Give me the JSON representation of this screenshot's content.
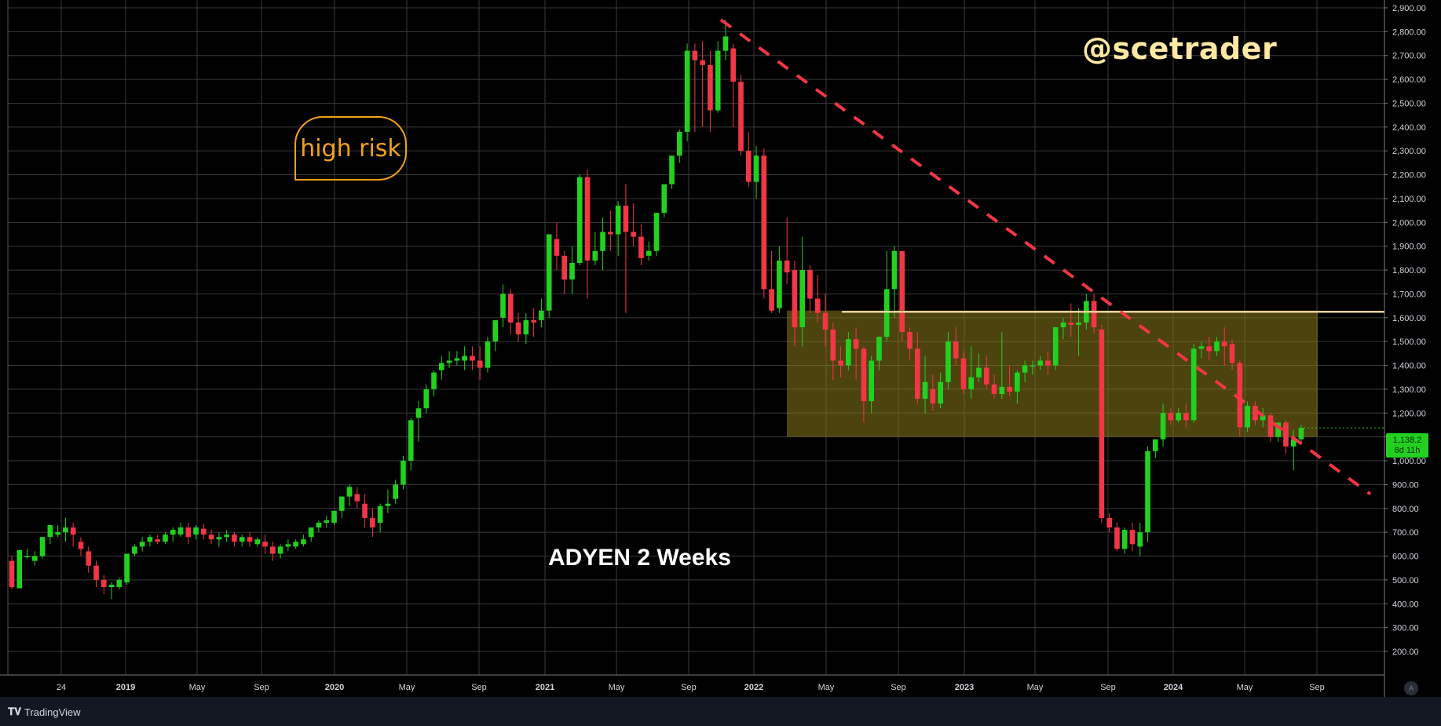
{
  "watermark": "@scetrader",
  "title_label": "ADYEN 2 Weeks",
  "callout": "high risk",
  "price_tag": {
    "price": "1,138.2",
    "countdown": "8d 11h"
  },
  "brand": "TradingView",
  "auto_button": "A",
  "colors": {
    "background": "#000000",
    "up": "#22d11f",
    "down": "#f23645",
    "grid": "#3a3a3a",
    "range_box": "#8a7a1c",
    "resistance_line": "#e8d29a",
    "trendline": "#f23645",
    "callout": "#f2a01a",
    "watermark": "#ffe8a3"
  },
  "chart_data": {
    "type": "candlestick",
    "title": "ADYEN 2 Weeks",
    "ylim": [
      200,
      2900
    ],
    "yticks": [
      200,
      300,
      400,
      500,
      600,
      700,
      800,
      900,
      1000,
      1100,
      1200,
      1300,
      1400,
      1500,
      1600,
      1700,
      1800,
      1900,
      2000,
      2100,
      2200,
      2300,
      2400,
      2500,
      2600,
      2700,
      2800,
      2900
    ],
    "ytick_labels": [
      "200.00",
      "300.00",
      "400.00",
      "500.00",
      "600.00",
      "700.00",
      "800.00",
      "900.00",
      "1,000.00",
      "1,100.00",
      "1,200.00",
      "1,300.00",
      "1,400.00",
      "1,500.00",
      "1,600.00",
      "1,700.00",
      "1,800.00",
      "1,900.00",
      "2,000.00",
      "2,100.00",
      "2,200.00",
      "2,300.00",
      "2,400.00",
      "2,500.00",
      "2,600.00",
      "2,700.00",
      "2,800.00",
      "2,900.00"
    ],
    "xticks": [
      {
        "label": "24",
        "bold": false
      },
      {
        "label": "2019",
        "bold": true
      },
      {
        "label": "May",
        "bold": false
      },
      {
        "label": "Sep",
        "bold": false
      },
      {
        "label": "2020",
        "bold": true
      },
      {
        "label": "May",
        "bold": false
      },
      {
        "label": "Sep",
        "bold": false
      },
      {
        "label": "2021",
        "bold": true
      },
      {
        "label": "May",
        "bold": false
      },
      {
        "label": "Sep",
        "bold": false
      },
      {
        "label": "2022",
        "bold": true
      },
      {
        "label": "May",
        "bold": false
      },
      {
        "label": "Sep",
        "bold": false
      },
      {
        "label": "2023",
        "bold": true
      },
      {
        "label": "May",
        "bold": false
      },
      {
        "label": "Sep",
        "bold": false
      },
      {
        "label": "2024",
        "bold": true
      },
      {
        "label": "May",
        "bold": false
      },
      {
        "label": "Sep",
        "bold": false
      }
    ],
    "range_box": {
      "low": 1100,
      "high": 1630
    },
    "resistance": 1625,
    "trendline": [
      {
        "start": 2850
      },
      {
        "end": 860
      }
    ],
    "last_price": 1138.2,
    "candles": [
      [
        580,
        600,
        470,
        460
      ],
      [
        465,
        600,
        625,
        470
      ],
      [
        600,
        630,
        600,
        590
      ],
      [
        580,
        620,
        600,
        560
      ],
      [
        600,
        640,
        680,
        590
      ],
      [
        680,
        720,
        730,
        650
      ],
      [
        690,
        730,
        700,
        680
      ],
      [
        700,
        760,
        720,
        660
      ],
      [
        720,
        740,
        690,
        640
      ],
      [
        660,
        680,
        630,
        600
      ],
      [
        620,
        640,
        560,
        530
      ],
      [
        560,
        580,
        500,
        470
      ],
      [
        500,
        520,
        470,
        440
      ],
      [
        470,
        490,
        480,
        420
      ],
      [
        470,
        510,
        500,
        460
      ],
      [
        490,
        520,
        610,
        480
      ],
      [
        610,
        650,
        640,
        600
      ],
      [
        640,
        680,
        660,
        620
      ],
      [
        660,
        690,
        680,
        640
      ],
      [
        670,
        690,
        660,
        650
      ],
      [
        660,
        700,
        690,
        650
      ],
      [
        690,
        720,
        710,
        660
      ],
      [
        690,
        740,
        720,
        680
      ],
      [
        720,
        740,
        680,
        650
      ],
      [
        690,
        730,
        720,
        670
      ],
      [
        715,
        735,
        690,
        670
      ],
      [
        690,
        710,
        670,
        650
      ],
      [
        670,
        700,
        680,
        640
      ],
      [
        680,
        710,
        690,
        660
      ],
      [
        690,
        700,
        660,
        640
      ],
      [
        660,
        690,
        680,
        640
      ],
      [
        680,
        700,
        660,
        640
      ],
      [
        650,
        680,
        670,
        640
      ],
      [
        660,
        690,
        640,
        610
      ],
      [
        640,
        660,
        610,
        580
      ],
      [
        610,
        650,
        640,
        590
      ],
      [
        640,
        670,
        650,
        620
      ],
      [
        640,
        670,
        660,
        630
      ],
      [
        650,
        690,
        670,
        640
      ],
      [
        680,
        720,
        720,
        660
      ],
      [
        720,
        750,
        740,
        700
      ],
      [
        740,
        770,
        750,
        720
      ],
      [
        740,
        790,
        790,
        730
      ],
      [
        790,
        850,
        850,
        760
      ],
      [
        850,
        900,
        890,
        810
      ],
      [
        860,
        890,
        830,
        800
      ],
      [
        820,
        860,
        760,
        720
      ],
      [
        760,
        800,
        720,
        680
      ],
      [
        740,
        820,
        810,
        700
      ],
      [
        810,
        880,
        820,
        780
      ],
      [
        840,
        920,
        900,
        820
      ],
      [
        900,
        1020,
        1000,
        880
      ],
      [
        1000,
        1180,
        1170,
        960
      ],
      [
        1180,
        1250,
        1220,
        1080
      ],
      [
        1220,
        1320,
        1300,
        1200
      ],
      [
        1300,
        1380,
        1370,
        1270
      ],
      [
        1380,
        1440,
        1410,
        1340
      ],
      [
        1410,
        1460,
        1420,
        1390
      ],
      [
        1420,
        1460,
        1430,
        1400
      ],
      [
        1420,
        1480,
        1440,
        1380
      ],
      [
        1440,
        1480,
        1420,
        1380
      ],
      [
        1420,
        1480,
        1390,
        1340
      ],
      [
        1390,
        1520,
        1500,
        1370
      ],
      [
        1500,
        1580,
        1590,
        1460
      ],
      [
        1600,
        1740,
        1700,
        1560
      ],
      [
        1700,
        1720,
        1580,
        1530
      ],
      [
        1580,
        1620,
        1530,
        1500
      ],
      [
        1530,
        1620,
        1590,
        1490
      ],
      [
        1590,
        1640,
        1580,
        1520
      ],
      [
        1590,
        1680,
        1630,
        1560
      ],
      [
        1630,
        1750,
        1950,
        1600
      ],
      [
        1930,
        2000,
        1860,
        1800
      ],
      [
        1860,
        1880,
        1760,
        1700
      ],
      [
        1760,
        1900,
        1830,
        1700
      ],
      [
        1830,
        2200,
        2190,
        1820
      ],
      [
        2190,
        2220,
        1840,
        1680
      ],
      [
        1840,
        1960,
        1880,
        1820
      ],
      [
        1880,
        2020,
        1960,
        1800
      ],
      [
        1960,
        2050,
        1950,
        1880
      ],
      [
        1950,
        2090,
        2070,
        1860
      ],
      [
        2070,
        2160,
        1960,
        1620
      ],
      [
        1960,
        2080,
        1940,
        1900
      ],
      [
        1940,
        1990,
        1850,
        1820
      ],
      [
        1860,
        1920,
        1880,
        1840
      ],
      [
        1880,
        1960,
        2040,
        1860
      ],
      [
        2040,
        2100,
        2160,
        2020
      ],
      [
        2160,
        2230,
        2280,
        2140
      ],
      [
        2280,
        2390,
        2380,
        2250
      ],
      [
        2380,
        2750,
        2720,
        2340
      ],
      [
        2720,
        2750,
        2680,
        2380
      ],
      [
        2680,
        2760,
        2660,
        2400
      ],
      [
        2660,
        2720,
        2470,
        2380
      ],
      [
        2470,
        2760,
        2720,
        2460
      ],
      [
        2720,
        2850,
        2780,
        2680
      ],
      [
        2730,
        2750,
        2590,
        2400
      ],
      [
        2590,
        2620,
        2300,
        2280
      ],
      [
        2300,
        2380,
        2170,
        2150
      ],
      [
        2170,
        2320,
        2280,
        2100
      ],
      [
        2280,
        2310,
        1720,
        1680
      ],
      [
        1720,
        1880,
        1630,
        1620
      ],
      [
        1640,
        1900,
        1840,
        1620
      ],
      [
        1840,
        2020,
        1790,
        1740
      ],
      [
        1800,
        1840,
        1560,
        1480
      ],
      [
        1560,
        1940,
        1800,
        1480
      ],
      [
        1800,
        1820,
        1680,
        1620
      ],
      [
        1680,
        1780,
        1620,
        1580
      ],
      [
        1620,
        1700,
        1550,
        1480
      ],
      [
        1550,
        1580,
        1420,
        1340
      ],
      [
        1420,
        1480,
        1400,
        1350
      ],
      [
        1400,
        1540,
        1510,
        1380
      ],
      [
        1510,
        1560,
        1470,
        1340
      ],
      [
        1470,
        1480,
        1250,
        1160
      ],
      [
        1250,
        1440,
        1420,
        1200
      ],
      [
        1420,
        1500,
        1520,
        1380
      ],
      [
        1520,
        1880,
        1720,
        1500
      ],
      [
        1720,
        1900,
        1880,
        1600
      ],
      [
        1880,
        1860,
        1540,
        1500
      ],
      [
        1540,
        1560,
        1470,
        1420
      ],
      [
        1470,
        1540,
        1260,
        1240
      ],
      [
        1260,
        1440,
        1330,
        1200
      ],
      [
        1300,
        1360,
        1240,
        1210
      ],
      [
        1240,
        1370,
        1330,
        1220
      ],
      [
        1330,
        1540,
        1500,
        1300
      ],
      [
        1500,
        1560,
        1430,
        1400
      ],
      [
        1430,
        1460,
        1300,
        1280
      ],
      [
        1300,
        1480,
        1350,
        1260
      ],
      [
        1350,
        1450,
        1390,
        1330
      ],
      [
        1390,
        1440,
        1320,
        1300
      ],
      [
        1320,
        1360,
        1280,
        1260
      ],
      [
        1280,
        1540,
        1310,
        1260
      ],
      [
        1310,
        1400,
        1290,
        1270
      ],
      [
        1290,
        1380,
        1370,
        1240
      ],
      [
        1370,
        1420,
        1400,
        1330
      ],
      [
        1400,
        1420,
        1400,
        1360
      ],
      [
        1400,
        1440,
        1420,
        1380
      ],
      [
        1420,
        1460,
        1400,
        1360
      ],
      [
        1400,
        1560,
        1560,
        1380
      ],
      [
        1560,
        1600,
        1580,
        1510
      ],
      [
        1580,
        1660,
        1570,
        1520
      ],
      [
        1570,
        1640,
        1580,
        1440
      ],
      [
        1580,
        1700,
        1670,
        1550
      ],
      [
        1670,
        1700,
        1560,
        1530
      ],
      [
        1550,
        1570,
        760,
        740
      ],
      [
        760,
        780,
        720,
        700
      ],
      [
        720,
        740,
        630,
        620
      ],
      [
        630,
        720,
        710,
        610
      ],
      [
        710,
        740,
        650,
        620
      ],
      [
        640,
        740,
        700,
        600
      ],
      [
        700,
        1060,
        1040,
        660
      ],
      [
        1040,
        1080,
        1090,
        1010
      ],
      [
        1090,
        1240,
        1200,
        1060
      ],
      [
        1200,
        1220,
        1170,
        1150
      ],
      [
        1170,
        1220,
        1200,
        1160
      ],
      [
        1200,
        1240,
        1170,
        1140
      ],
      [
        1170,
        1490,
        1470,
        1160
      ],
      [
        1470,
        1500,
        1480,
        1430
      ],
      [
        1480,
        1520,
        1460,
        1420
      ],
      [
        1460,
        1520,
        1500,
        1440
      ],
      [
        1500,
        1560,
        1480,
        1400
      ],
      [
        1490,
        1510,
        1410,
        1380
      ],
      [
        1410,
        1420,
        1140,
        1100
      ],
      [
        1140,
        1250,
        1230,
        1120
      ],
      [
        1230,
        1250,
        1170,
        1150
      ],
      [
        1170,
        1220,
        1190,
        1140
      ],
      [
        1190,
        1200,
        1100,
        1080
      ],
      [
        1100,
        1160,
        1160,
        1080
      ],
      [
        1160,
        1170,
        1060,
        1030
      ],
      [
        1060,
        1130,
        1090,
        960
      ],
      [
        1090,
        1150,
        1138,
        1070
      ]
    ]
  }
}
